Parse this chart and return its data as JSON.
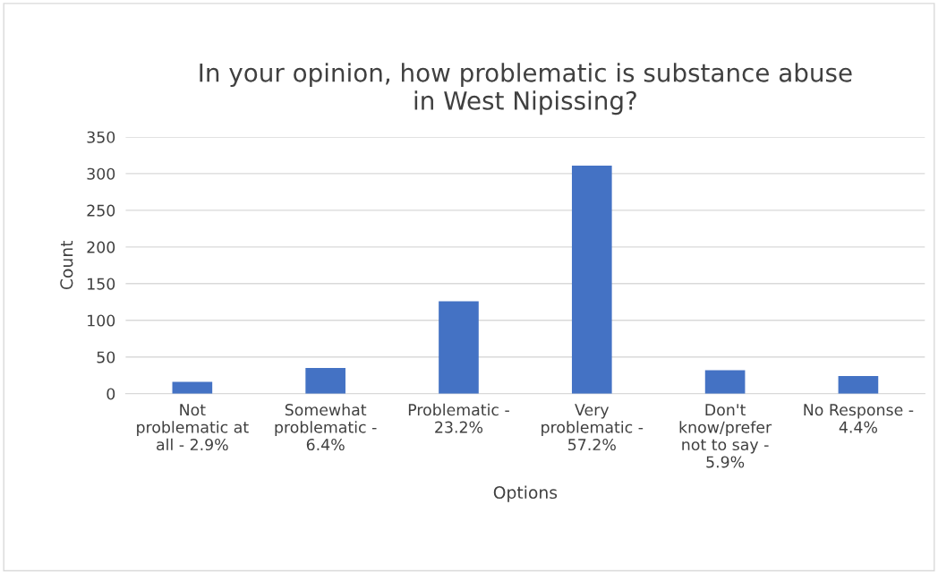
{
  "chart_data": {
    "type": "bar",
    "title": "In your opinion, how problematic is substance abuse\nin West Nipissing?",
    "categories": [
      "Not\nproblematic at\nall - 2.9%",
      "Somewhat\nproblematic -\n6.4%",
      "Problematic -\n23.2%",
      "Very\nproblematic -\n57.2%",
      "Don't\nknow/prefer\nnot to say -\n5.9%",
      "No Response -\n4.4%"
    ],
    "values": [
      16,
      35,
      126,
      311,
      32,
      24
    ],
    "color": "#4472c4",
    "xlabel": "Options",
    "ylabel": "Count",
    "ylim": [
      0,
      350
    ],
    "yticks": [
      0,
      50,
      100,
      150,
      200,
      250,
      300,
      350
    ],
    "grid": "y",
    "legend": false
  }
}
